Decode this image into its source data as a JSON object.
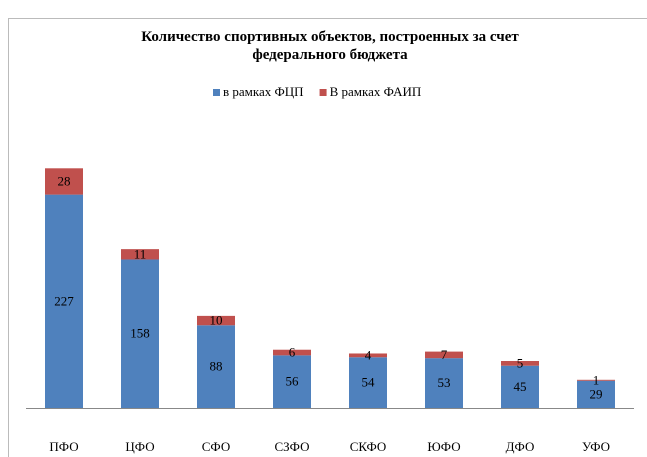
{
  "chart_data": {
    "type": "stacked_bar",
    "title": "Количество спортивных объектов, построенных за счет федерального бюджета",
    "categories": [
      "ПФО",
      "ЦФО",
      "СФО",
      "СЗФО",
      "СКФО",
      "ЮФО",
      "ДФО",
      "УФО"
    ],
    "series": [
      {
        "name": "в рамках ФЦП",
        "color": "#4f81bd",
        "values": [
          227,
          158,
          88,
          56,
          54,
          53,
          45,
          29
        ]
      },
      {
        "name": "В рамках ФАИП",
        "color": "#c0504d",
        "values": [
          28,
          11,
          10,
          6,
          4,
          7,
          5,
          1
        ]
      }
    ]
  }
}
